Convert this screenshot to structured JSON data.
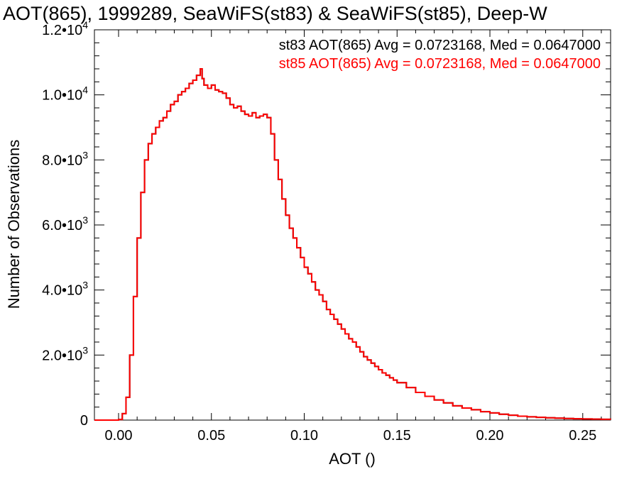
{
  "chart_data": {
    "type": "line",
    "title": "AOT(865), 1999289, SeaWiFS(st83) & SeaWiFS(st85), Deep-W",
    "xlabel": "AOT ()",
    "ylabel": "Number of Observations",
    "xlim": [
      -0.013,
      0.265
    ],
    "ylim": [
      0,
      12000
    ],
    "grid": false,
    "x_ticks": [
      0.0,
      0.05,
      0.1,
      0.15,
      0.2,
      0.25
    ],
    "x_tick_labels": [
      "0.00",
      "0.05",
      "0.10",
      "0.15",
      "0.20",
      "0.25"
    ],
    "y_ticks": [
      0,
      2000,
      4000,
      6000,
      8000,
      10000,
      12000
    ],
    "y_tick_labels": [
      {
        "base": "0",
        "exp": ""
      },
      {
        "base": "2.0•10",
        "exp": "3"
      },
      {
        "base": "4.0•10",
        "exp": "3"
      },
      {
        "base": "6.0•10",
        "exp": "3"
      },
      {
        "base": "8.0•10",
        "exp": "3"
      },
      {
        "base": "1.0•10",
        "exp": "4"
      },
      {
        "base": "1.2•10",
        "exp": "4"
      }
    ],
    "annotations": [
      {
        "text": "st83 AOT(865) Avg = 0.0723168, Med = 0.0647000",
        "color": "#000000"
      },
      {
        "text": "st85 AOT(865) Avg = 0.0723168, Med = 0.0647000",
        "color": "#ff0000"
      }
    ],
    "series": [
      {
        "name": "st83",
        "color": "#000000",
        "x": [
          -0.013,
          -0.005,
          0.0,
          0.002,
          0.004,
          0.006,
          0.008,
          0.01,
          0.012,
          0.014,
          0.016,
          0.018,
          0.02,
          0.022,
          0.024,
          0.026,
          0.028,
          0.03,
          0.032,
          0.034,
          0.036,
          0.038,
          0.04,
          0.042,
          0.044,
          0.045,
          0.046,
          0.048,
          0.05,
          0.052,
          0.054,
          0.056,
          0.058,
          0.06,
          0.062,
          0.064,
          0.066,
          0.068,
          0.07,
          0.072,
          0.074,
          0.076,
          0.078,
          0.08,
          0.082,
          0.084,
          0.086,
          0.088,
          0.09,
          0.092,
          0.094,
          0.096,
          0.098,
          0.1,
          0.102,
          0.104,
          0.106,
          0.108,
          0.11,
          0.112,
          0.114,
          0.116,
          0.118,
          0.12,
          0.122,
          0.124,
          0.126,
          0.128,
          0.13,
          0.132,
          0.134,
          0.136,
          0.138,
          0.14,
          0.142,
          0.144,
          0.146,
          0.148,
          0.15,
          0.155,
          0.16,
          0.165,
          0.17,
          0.175,
          0.18,
          0.185,
          0.19,
          0.195,
          0.2,
          0.205,
          0.21,
          0.215,
          0.22,
          0.225,
          0.23,
          0.235,
          0.24,
          0.245,
          0.25,
          0.255,
          0.26,
          0.265
        ],
        "y": [
          0,
          0,
          20,
          200,
          700,
          2000,
          3800,
          5600,
          7000,
          8000,
          8500,
          8800,
          9000,
          9200,
          9300,
          9500,
          9700,
          9800,
          10000,
          10100,
          10200,
          10350,
          10450,
          10600,
          10800,
          10500,
          10300,
          10200,
          10300,
          10150,
          10100,
          10050,
          9900,
          9700,
          9600,
          9650,
          9500,
          9400,
          9350,
          9450,
          9300,
          9350,
          9400,
          9300,
          8800,
          8000,
          7400,
          6800,
          6300,
          5900,
          5600,
          5300,
          5000,
          4700,
          4500,
          4250,
          4000,
          3850,
          3650,
          3400,
          3250,
          3100,
          2950,
          2800,
          2650,
          2500,
          2400,
          2250,
          2100,
          1950,
          1850,
          1750,
          1650,
          1550,
          1450,
          1380,
          1300,
          1230,
          1150,
          1000,
          850,
          730,
          620,
          530,
          440,
          370,
          320,
          260,
          220,
          180,
          150,
          120,
          100,
          85,
          70,
          60,
          50,
          40,
          35,
          30,
          25,
          20
        ]
      },
      {
        "name": "st85",
        "color": "#ff0000",
        "x": [
          -0.013,
          -0.005,
          0.0,
          0.002,
          0.004,
          0.006,
          0.008,
          0.01,
          0.012,
          0.014,
          0.016,
          0.018,
          0.02,
          0.022,
          0.024,
          0.026,
          0.028,
          0.03,
          0.032,
          0.034,
          0.036,
          0.038,
          0.04,
          0.042,
          0.044,
          0.045,
          0.046,
          0.048,
          0.05,
          0.052,
          0.054,
          0.056,
          0.058,
          0.06,
          0.062,
          0.064,
          0.066,
          0.068,
          0.07,
          0.072,
          0.074,
          0.076,
          0.078,
          0.08,
          0.082,
          0.084,
          0.086,
          0.088,
          0.09,
          0.092,
          0.094,
          0.096,
          0.098,
          0.1,
          0.102,
          0.104,
          0.106,
          0.108,
          0.11,
          0.112,
          0.114,
          0.116,
          0.118,
          0.12,
          0.122,
          0.124,
          0.126,
          0.128,
          0.13,
          0.132,
          0.134,
          0.136,
          0.138,
          0.14,
          0.142,
          0.144,
          0.146,
          0.148,
          0.15,
          0.155,
          0.16,
          0.165,
          0.17,
          0.175,
          0.18,
          0.185,
          0.19,
          0.195,
          0.2,
          0.205,
          0.21,
          0.215,
          0.22,
          0.225,
          0.23,
          0.235,
          0.24,
          0.245,
          0.25,
          0.255,
          0.26,
          0.265
        ],
        "y": [
          0,
          0,
          20,
          200,
          700,
          2000,
          3800,
          5600,
          7000,
          8000,
          8500,
          8800,
          9000,
          9200,
          9300,
          9500,
          9700,
          9800,
          10000,
          10100,
          10200,
          10350,
          10450,
          10600,
          10800,
          10500,
          10300,
          10200,
          10300,
          10150,
          10100,
          10050,
          9900,
          9700,
          9600,
          9650,
          9500,
          9400,
          9350,
          9450,
          9300,
          9350,
          9400,
          9300,
          8800,
          8000,
          7400,
          6800,
          6300,
          5900,
          5600,
          5300,
          5000,
          4700,
          4500,
          4250,
          4000,
          3850,
          3650,
          3400,
          3250,
          3100,
          2950,
          2800,
          2650,
          2500,
          2400,
          2250,
          2100,
          1950,
          1850,
          1750,
          1650,
          1550,
          1450,
          1380,
          1300,
          1230,
          1150,
          1000,
          850,
          730,
          620,
          530,
          440,
          370,
          320,
          260,
          220,
          180,
          150,
          120,
          100,
          85,
          70,
          60,
          50,
          40,
          35,
          30,
          25,
          20
        ]
      }
    ]
  }
}
